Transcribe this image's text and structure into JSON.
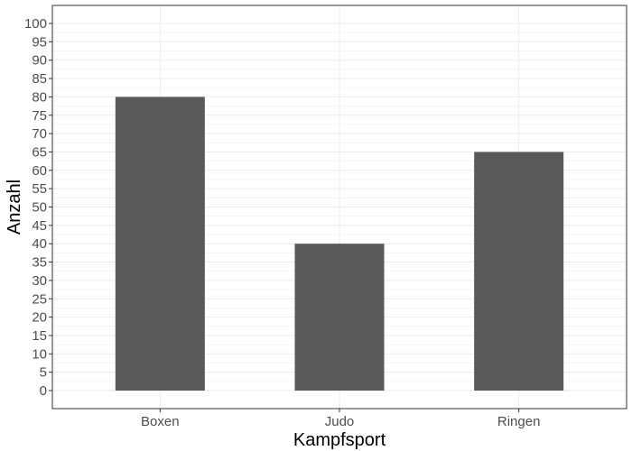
{
  "chart_data": {
    "type": "bar",
    "title": "",
    "xlabel": "Kampfsport",
    "ylabel": "Anzahl",
    "categories": [
      "Boxen",
      "Judo",
      "Ringen"
    ],
    "values": [
      80,
      40,
      65
    ],
    "ylim": [
      0,
      100
    ],
    "yticks": [
      0,
      5,
      10,
      15,
      20,
      25,
      30,
      35,
      40,
      45,
      50,
      55,
      60,
      65,
      70,
      75,
      80,
      85,
      90,
      95,
      100
    ],
    "grid": true,
    "legend": "none",
    "colors": {
      "bar": "#595959",
      "grid": "#ebebeb",
      "panel_border": "#333333",
      "tick_text": "#4d4d4d",
      "title_text": "#000000"
    }
  }
}
